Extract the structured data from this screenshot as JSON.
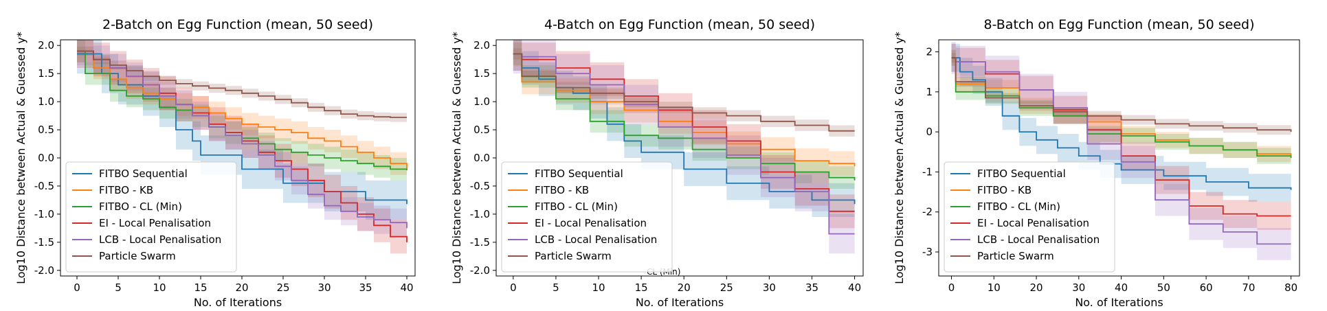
{
  "chart_data": [
    {
      "type": "line",
      "title": "2-Batch on Egg Function (mean, 50 seed)",
      "xlabel": "No. of Iterations",
      "ylabel": "Log10 Distance between Actual & Guessed y*",
      "xlim": [
        -2,
        41
      ],
      "ylim": [
        -2.1,
        2.1
      ],
      "xticks": [
        "0",
        "5",
        "10",
        "15",
        "20",
        "25",
        "30",
        "35",
        "40"
      ],
      "yticks": [
        "2.0",
        "1.5",
        "1.0",
        "0.5",
        "0.0",
        "-0.5",
        "-1.0",
        "-1.5",
        "-2.0"
      ],
      "legend_position": "lower-left",
      "grid": false,
      "series": [
        {
          "name": "FITBO Sequential",
          "color": "#1f77b4",
          "band": 0.35,
          "x": [
            0,
            3,
            5,
            8,
            10,
            12,
            14,
            15,
            20,
            25,
            30,
            35,
            40
          ],
          "y": [
            1.85,
            1.5,
            1.3,
            1.1,
            0.9,
            0.5,
            0.3,
            0.05,
            -0.2,
            -0.45,
            -0.6,
            -0.75,
            -0.82
          ]
        },
        {
          "name": "FITBO - KB",
          "color": "#ff7f0e",
          "band": 0.2,
          "x": [
            0,
            2,
            4,
            6,
            8,
            10,
            12,
            14,
            16,
            18,
            20,
            22,
            24,
            26,
            28,
            30,
            32,
            34,
            36,
            38,
            40
          ],
          "y": [
            1.9,
            1.6,
            1.4,
            1.25,
            1.15,
            1.05,
            0.95,
            0.9,
            0.8,
            0.7,
            0.6,
            0.55,
            0.5,
            0.45,
            0.35,
            0.3,
            0.2,
            0.1,
            0.0,
            -0.1,
            -0.2
          ]
        },
        {
          "name": "FITBO - CL (Min)",
          "color": "#2ca02c",
          "band": 0.2,
          "x": [
            0,
            1,
            3,
            4,
            6,
            8,
            10,
            12,
            14,
            16,
            18,
            20,
            22,
            24,
            26,
            28,
            30,
            32,
            34,
            36,
            38,
            40
          ],
          "y": [
            1.9,
            1.5,
            1.5,
            1.2,
            1.1,
            1.05,
            0.9,
            0.85,
            0.75,
            0.55,
            0.45,
            0.35,
            0.25,
            0.15,
            0.1,
            0.05,
            0.0,
            -0.05,
            -0.1,
            -0.15,
            -0.2,
            -0.22
          ]
        },
        {
          "name": "EI - Local Penalisation",
          "color": "#d62728",
          "band": 0.3,
          "x": [
            0,
            2,
            4,
            6,
            8,
            10,
            12,
            14,
            16,
            18,
            20,
            22,
            24,
            26,
            28,
            30,
            32,
            34,
            36,
            38,
            40
          ],
          "y": [
            1.9,
            1.75,
            1.6,
            1.45,
            1.3,
            1.15,
            0.95,
            0.8,
            0.6,
            0.45,
            0.3,
            0.1,
            -0.05,
            -0.2,
            -0.4,
            -0.6,
            -0.8,
            -1.0,
            -1.2,
            -1.4,
            -1.5
          ]
        },
        {
          "name": "LCB - Local Penalisation",
          "color": "#9467bd",
          "band": 0.25,
          "x": [
            0,
            2,
            4,
            6,
            8,
            10,
            12,
            14,
            16,
            18,
            20,
            22,
            24,
            26,
            28,
            30,
            32,
            34,
            36,
            38,
            40
          ],
          "y": [
            1.9,
            1.75,
            1.6,
            1.45,
            1.3,
            1.1,
            0.95,
            0.75,
            0.55,
            0.4,
            0.25,
            0.05,
            -0.15,
            -0.4,
            -0.65,
            -0.85,
            -0.95,
            -1.05,
            -1.1,
            -1.15,
            -1.25
          ]
        },
        {
          "name": "Particle Swarm",
          "color": "#8c564b",
          "band": 0.08,
          "x": [
            0,
            2,
            4,
            6,
            8,
            10,
            12,
            14,
            16,
            18,
            20,
            22,
            24,
            26,
            28,
            30,
            32,
            34,
            36,
            38,
            40
          ],
          "y": [
            1.9,
            1.75,
            1.65,
            1.55,
            1.45,
            1.38,
            1.32,
            1.28,
            1.24,
            1.2,
            1.15,
            1.1,
            1.04,
            0.98,
            0.9,
            0.84,
            0.78,
            0.75,
            0.73,
            0.72,
            0.72
          ]
        }
      ]
    },
    {
      "type": "line",
      "title": "4-Batch on Egg Function (mean, 50 seed)",
      "xlabel": "No. of Iterations",
      "ylabel": "Log10 Distance between Actual & Guessed y*",
      "xlim": [
        -2,
        41
      ],
      "ylim": [
        -2.1,
        2.1
      ],
      "xticks": [
        "0",
        "5",
        "10",
        "15",
        "20",
        "25",
        "30",
        "35",
        "40"
      ],
      "yticks": [
        "2.0",
        "1.5",
        "1.0",
        "0.5",
        "0.0",
        "-0.5",
        "-1.0",
        "-1.5",
        "-2.0"
      ],
      "annotation": "CL (Min)",
      "legend_position": "lower-left",
      "grid": false,
      "series": [
        {
          "name": "FITBO Sequential",
          "color": "#1f77b4",
          "band": 0.3,
          "x": [
            0,
            1,
            3,
            5,
            7,
            9,
            11,
            13,
            15,
            20,
            25,
            30,
            35,
            40
          ],
          "y": [
            1.85,
            1.6,
            1.4,
            1.25,
            1.15,
            1.0,
            0.6,
            0.3,
            0.1,
            -0.2,
            -0.45,
            -0.6,
            -0.75,
            -0.82
          ]
        },
        {
          "name": "FITBO - KB",
          "color": "#ff7f0e",
          "band": 0.22,
          "x": [
            0,
            1,
            5,
            9,
            13,
            17,
            21,
            25,
            29,
            33,
            37,
            40
          ],
          "y": [
            1.85,
            1.35,
            1.2,
            1.0,
            0.85,
            0.65,
            0.45,
            0.25,
            0.15,
            -0.05,
            -0.1,
            -0.15
          ]
        },
        {
          "name": "FITBO - CL (Min)",
          "color": "#2ca02c",
          "band": 0.2,
          "x": [
            0,
            1,
            5,
            9,
            13,
            17,
            21,
            25,
            29,
            33,
            37,
            40
          ],
          "y": [
            1.85,
            1.45,
            1.05,
            0.65,
            0.4,
            0.35,
            0.15,
            0.0,
            -0.1,
            -0.25,
            -0.35,
            -0.4
          ]
        },
        {
          "name": "EI - Local Penalisation",
          "color": "#d62728",
          "band": 0.3,
          "x": [
            0,
            1,
            5,
            9,
            13,
            17,
            21,
            25,
            29,
            33,
            37,
            40
          ],
          "y": [
            1.85,
            1.75,
            1.6,
            1.4,
            1.1,
            0.85,
            0.55,
            0.3,
            -0.25,
            -0.55,
            -0.95,
            -0.95
          ]
        },
        {
          "name": "LCB - Local Penalisation",
          "color": "#9467bd",
          "band": 0.35,
          "x": [
            0,
            1,
            5,
            9,
            13,
            17,
            21,
            25,
            29,
            33,
            37,
            40
          ],
          "y": [
            1.85,
            1.8,
            1.5,
            1.3,
            0.95,
            0.55,
            0.35,
            0.05,
            -0.35,
            -0.6,
            -1.35,
            -1.35
          ]
        },
        {
          "name": "Particle Swarm",
          "color": "#8c564b",
          "band": 0.1,
          "x": [
            0,
            1,
            5,
            9,
            13,
            17,
            21,
            25,
            29,
            33,
            37,
            40
          ],
          "y": [
            1.85,
            1.45,
            1.25,
            1.15,
            1.0,
            0.9,
            0.8,
            0.75,
            0.65,
            0.58,
            0.48,
            0.48
          ]
        }
      ]
    },
    {
      "type": "line",
      "title": "8-Batch on Egg Function (mean, 50 seed)",
      "xlabel": "No. of Iterations",
      "ylabel": "Log10 Distance between Actual & Guessed y*",
      "xlim": [
        -3,
        82
      ],
      "ylim": [
        -3.6,
        2.3
      ],
      "xticks": [
        "0",
        "10",
        "20",
        "30",
        "40",
        "50",
        "60",
        "70",
        "80"
      ],
      "yticks": [
        "2",
        "1",
        "0",
        "-1",
        "-2",
        "-3"
      ],
      "legend_position": "lower-left",
      "grid": false,
      "series": [
        {
          "name": "FITBO Sequential",
          "color": "#1f77b4",
          "band": 0.35,
          "x": [
            0,
            2,
            5,
            8,
            12,
            16,
            20,
            25,
            30,
            35,
            40,
            50,
            60,
            70,
            80
          ],
          "y": [
            1.85,
            1.5,
            1.3,
            1.0,
            0.4,
            0.0,
            -0.2,
            -0.4,
            -0.6,
            -0.8,
            -0.95,
            -1.1,
            -1.25,
            -1.4,
            -1.45
          ]
        },
        {
          "name": "FITBO - KB",
          "color": "#ff7f0e",
          "band": 0.2,
          "x": [
            0,
            1,
            8,
            16,
            24,
            32,
            40,
            48,
            56,
            64,
            72,
            80
          ],
          "y": [
            1.85,
            1.2,
            1.1,
            0.65,
            0.4,
            0.25,
            -0.05,
            -0.2,
            -0.35,
            -0.45,
            -0.55,
            -0.6
          ]
        },
        {
          "name": "FITBO - CL (Min)",
          "color": "#2ca02c",
          "band": 0.2,
          "x": [
            0,
            1,
            8,
            16,
            24,
            32,
            40,
            48,
            56,
            64,
            72,
            80
          ],
          "y": [
            1.85,
            1.0,
            0.9,
            0.6,
            0.4,
            -0.05,
            -0.1,
            -0.25,
            -0.35,
            -0.45,
            -0.6,
            -0.65
          ]
        },
        {
          "name": "EI - Local Penalisation",
          "color": "#d62728",
          "band": 0.35,
          "x": [
            0,
            1,
            8,
            16,
            24,
            32,
            40,
            48,
            56,
            64,
            72,
            80
          ],
          "y": [
            1.85,
            1.75,
            1.45,
            1.05,
            0.55,
            0.05,
            -0.6,
            -1.2,
            -1.85,
            -2.05,
            -2.1,
            -2.1
          ]
        },
        {
          "name": "LCB - Local Penalisation",
          "color": "#9467bd",
          "band": 0.4,
          "x": [
            0,
            1,
            8,
            16,
            24,
            32,
            40,
            48,
            56,
            64,
            72,
            80
          ],
          "y": [
            1.85,
            1.75,
            1.5,
            1.05,
            0.6,
            -0.3,
            -0.75,
            -1.7,
            -2.3,
            -2.5,
            -2.8,
            -2.8
          ]
        },
        {
          "name": "Particle Swarm",
          "color": "#8c564b",
          "band": 0.12,
          "x": [
            0,
            1,
            8,
            16,
            24,
            32,
            40,
            48,
            56,
            64,
            72,
            80
          ],
          "y": [
            1.85,
            1.25,
            0.85,
            0.65,
            0.5,
            0.4,
            0.3,
            0.2,
            0.15,
            0.1,
            0.05,
            0.0
          ]
        }
      ]
    }
  ]
}
